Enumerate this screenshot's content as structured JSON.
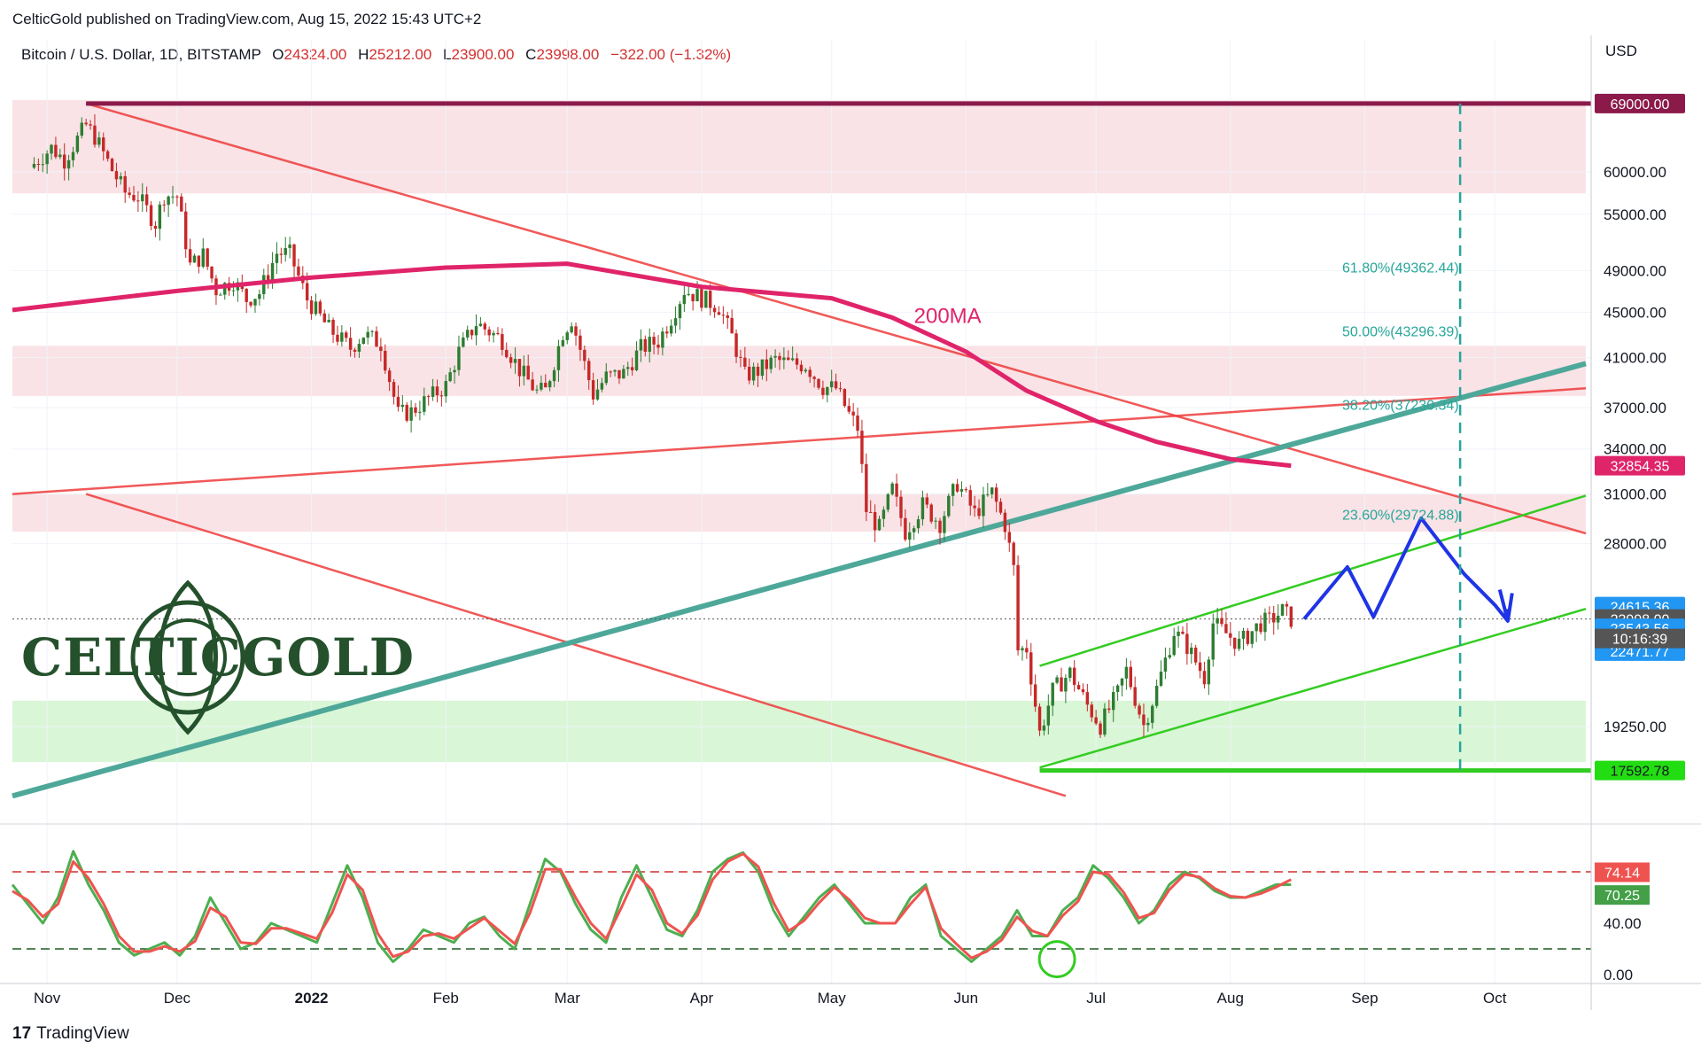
{
  "header": {
    "published": "CelticGold published on TradingView.com, Aug 15, 2022 15:43 UTC+2",
    "symbol": "Bitcoin / U.S. Dollar, 1D, BITSTAMP",
    "o_label": "O",
    "o_value": "24324.00",
    "h_label": "H",
    "h_value": "25212.00",
    "l_label": "L",
    "l_value": "23900.00",
    "c_label": "C",
    "c_value": "23998.00",
    "change": "−322.00 (−1.32%)"
  },
  "axis_unit": "USD",
  "logo": "CELTICGOLD",
  "footer": {
    "brand": "TradingView",
    "mark": "17"
  },
  "colors": {
    "ma200": "#e0246a",
    "trend_red": "#ef3b3b",
    "teal_trend": "#4ea89a",
    "green_channel": "#33cc22",
    "projection": "#1f34e6",
    "resistance_zone": "#f7d9dd",
    "support_zone": "#c9f2c4",
    "candle_up": "#2e7d32",
    "candle_down": "#c62828",
    "stoch_k": "#4caf50",
    "stoch_d": "#ef5350"
  },
  "chart_data": [
    {
      "type": "line",
      "title": "Bitcoin / U.S. Dollar, 1D, BITSTAMP",
      "y_scale": "log",
      "y_ticks": [
        {
          "v": 60000,
          "label": "60000.00"
        },
        {
          "v": 55000,
          "label": "55000.00"
        },
        {
          "v": 49000,
          "label": "49000.00"
        },
        {
          "v": 45000,
          "label": "45000.00"
        },
        {
          "v": 41000,
          "label": "41000.00"
        },
        {
          "v": 37000,
          "label": "37000.00"
        },
        {
          "v": 34000,
          "label": "34000.00"
        },
        {
          "v": 31000,
          "label": "31000.00"
        },
        {
          "v": 28000,
          "label": "28000.00"
        },
        {
          "v": 19250,
          "label": "19250.00"
        }
      ],
      "price_tags": [
        {
          "v": 69000,
          "label": "69000.00",
          "color": "#8b1a4a"
        },
        {
          "v": 32854.35,
          "label": "32854.35",
          "color": "#e0246a"
        },
        {
          "v": 24615.36,
          "label": "24615.36",
          "color": "#2196f3"
        },
        {
          "v": 23998,
          "label": "23998.00",
          "color": "#555555"
        },
        {
          "v": 23543.56,
          "label": "23543.56",
          "color": "#2196f3"
        },
        {
          "v": 22471.77,
          "label": "22471.77",
          "color": "#2196f3"
        },
        {
          "v": 17592.78,
          "label": "17592.78",
          "color": "#22dd11",
          "dark_text": true
        }
      ],
      "countdown": "10:16:39",
      "x_labels": [
        {
          "d": "2021-11-01",
          "label": "Nov"
        },
        {
          "d": "2021-12-01",
          "label": "Dec"
        },
        {
          "d": "2022-01-01",
          "label": "2022",
          "bold": true
        },
        {
          "d": "2022-02-01",
          "label": "Feb"
        },
        {
          "d": "2022-03-01",
          "label": "Mar"
        },
        {
          "d": "2022-04-01",
          "label": "Apr"
        },
        {
          "d": "2022-05-01",
          "label": "May"
        },
        {
          "d": "2022-06-01",
          "label": "Jun"
        },
        {
          "d": "2022-07-01",
          "label": "Jul"
        },
        {
          "d": "2022-08-01",
          "label": "Aug"
        },
        {
          "d": "2022-09-01",
          "label": "Sep"
        },
        {
          "d": "2022-10-01",
          "label": "Oct"
        }
      ],
      "fib_levels": [
        {
          "v": 49362.44,
          "label": "61.80%(49362.44)"
        },
        {
          "v": 43296.39,
          "label": "50.00%(43296.39)"
        },
        {
          "v": 37230.34,
          "label": "38.20%(37230.34)"
        },
        {
          "v": 29724.88,
          "label": "23.60%(29724.88)"
        }
      ],
      "annotations": [
        {
          "label": "200MA"
        }
      ],
      "price_path": [
        [
          "2021-10-28",
          60500
        ],
        [
          "2021-11-02",
          63000
        ],
        [
          "2021-11-05",
          61500
        ],
        [
          "2021-11-10",
          66000
        ],
        [
          "2021-11-12",
          64500
        ],
        [
          "2021-11-16",
          60200
        ],
        [
          "2021-11-19",
          57500
        ],
        [
          "2021-11-22",
          57000
        ],
        [
          "2021-11-26",
          54000
        ],
        [
          "2021-11-28",
          57200
        ],
        [
          "2021-12-01",
          57100
        ],
        [
          "2021-12-04",
          49500
        ],
        [
          "2021-12-07",
          50600
        ],
        [
          "2021-12-10",
          47100
        ],
        [
          "2021-12-14",
          48000
        ],
        [
          "2021-12-17",
          46200
        ],
        [
          "2021-12-20",
          46800
        ],
        [
          "2021-12-24",
          50800
        ],
        [
          "2021-12-27",
          50700
        ],
        [
          "2021-12-31",
          46200
        ],
        [
          "2022-01-05",
          43500
        ],
        [
          "2022-01-10",
          41800
        ],
        [
          "2022-01-13",
          43000
        ],
        [
          "2022-01-17",
          42200
        ],
        [
          "2022-01-21",
          36500
        ],
        [
          "2022-01-24",
          36700
        ],
        [
          "2022-01-28",
          37700
        ],
        [
          "2022-02-01",
          38700
        ],
        [
          "2022-02-04",
          41500
        ],
        [
          "2022-02-08",
          44000
        ],
        [
          "2022-02-10",
          43500
        ],
        [
          "2022-02-14",
          42500
        ],
        [
          "2022-02-18",
          40000
        ],
        [
          "2022-02-22",
          38200
        ],
        [
          "2022-02-24",
          38300
        ],
        [
          "2022-02-28",
          43200
        ],
        [
          "2022-03-02",
          44400
        ],
        [
          "2022-03-07",
          38000
        ],
        [
          "2022-03-10",
          39400
        ],
        [
          "2022-03-14",
          39700
        ],
        [
          "2022-03-18",
          41800
        ],
        [
          "2022-03-22",
          42400
        ],
        [
          "2022-03-25",
          44500
        ],
        [
          "2022-03-28",
          47100
        ],
        [
          "2022-04-01",
          46300
        ],
        [
          "2022-04-05",
          45500
        ],
        [
          "2022-04-08",
          42800
        ],
        [
          "2022-04-11",
          39500
        ],
        [
          "2022-04-14",
          39900
        ],
        [
          "2022-04-18",
          40800
        ],
        [
          "2022-04-21",
          40500
        ],
        [
          "2022-04-25",
          40400
        ],
        [
          "2022-04-29",
          38600
        ],
        [
          "2022-05-02",
          38500
        ],
        [
          "2022-05-05",
          36500
        ],
        [
          "2022-05-07",
          35500
        ],
        [
          "2022-05-09",
          30000
        ],
        [
          "2022-05-12",
          28900
        ],
        [
          "2022-05-15",
          31300
        ],
        [
          "2022-05-18",
          28700
        ],
        [
          "2022-05-22",
          30300
        ],
        [
          "2022-05-26",
          29200
        ],
        [
          "2022-05-30",
          31700
        ],
        [
          "2022-06-03",
          29800
        ],
        [
          "2022-06-07",
          31100
        ],
        [
          "2022-06-10",
          29100
        ],
        [
          "2022-06-12",
          26600
        ],
        [
          "2022-06-13",
          22500
        ],
        [
          "2022-06-15",
          22600
        ],
        [
          "2022-06-18",
          19000
        ],
        [
          "2022-06-21",
          20700
        ],
        [
          "2022-06-25",
          21500
        ],
        [
          "2022-06-29",
          20100
        ],
        [
          "2022-07-02",
          19300
        ],
        [
          "2022-07-06",
          20600
        ],
        [
          "2022-07-08",
          21600
        ],
        [
          "2022-07-12",
          19300
        ],
        [
          "2022-07-15",
          20800
        ],
        [
          "2022-07-19",
          23400
        ],
        [
          "2022-07-22",
          22700
        ],
        [
          "2022-07-26",
          21300
        ],
        [
          "2022-07-28",
          23800
        ],
        [
          "2022-07-31",
          23300
        ],
        [
          "2022-08-03",
          22800
        ],
        [
          "2022-08-05",
          23200
        ],
        [
          "2022-08-08",
          23800
        ],
        [
          "2022-08-10",
          23900
        ],
        [
          "2022-08-13",
          24400
        ],
        [
          "2022-08-15",
          23998
        ]
      ],
      "ma200_path": [
        [
          "2021-10-24",
          45200
        ],
        [
          "2021-11-10",
          46000
        ],
        [
          "2021-12-01",
          47000
        ],
        [
          "2022-01-01",
          48300
        ],
        [
          "2022-02-01",
          49300
        ],
        [
          "2022-03-01",
          49700
        ],
        [
          "2022-04-01",
          47400
        ],
        [
          "2022-05-01",
          46300
        ],
        [
          "2022-05-15",
          44500
        ],
        [
          "2022-06-01",
          41500
        ],
        [
          "2022-06-15",
          38300
        ],
        [
          "2022-07-01",
          36000
        ],
        [
          "2022-07-15",
          34500
        ],
        [
          "2022-08-01",
          33300
        ],
        [
          "2022-08-15",
          32854
        ]
      ],
      "trendlines_red": [
        [
          [
            "2021-11-10",
            69000
          ],
          [
            "2022-10-22",
            28600
          ]
        ],
        [
          [
            "2021-11-10",
            31000
          ],
          [
            "2022-06-24",
            16700
          ]
        ],
        [
          [
            "2021-10-24",
            31000
          ],
          [
            "2022-10-22",
            38500
          ]
        ]
      ],
      "trendline_teal": [
        [
          "2021-10-24",
          16700
        ],
        [
          "2022-10-22",
          40500
        ]
      ],
      "green_channel": [
        [
          [
            "2022-06-18",
            21800
          ],
          [
            "2022-10-22",
            30900
          ]
        ],
        [
          [
            "2022-06-18",
            17700
          ],
          [
            "2022-10-22",
            24500
          ]
        ]
      ],
      "support_line": [
        [
          "2022-06-18",
          17592.78
        ],
        [
          "2022-10-22",
          17592.78
        ]
      ],
      "projection_path": [
        [
          "2022-08-18",
          24000
        ],
        [
          "2022-08-28",
          26700
        ],
        [
          "2022-09-03",
          24100
        ],
        [
          "2022-09-14",
          29500
        ],
        [
          "2022-09-24",
          26300
        ],
        [
          "2022-10-01",
          24700
        ],
        [
          "2022-10-04",
          23900
        ],
        [
          "2022-10-05",
          25300
        ]
      ],
      "resistance_zones": [
        [
          57400,
          69500
        ],
        [
          37900,
          42000
        ],
        [
          28700,
          31000
        ]
      ],
      "support_zone": [
        17900,
        20300
      ],
      "fib_vertical": "2022-09-23"
    },
    {
      "type": "line",
      "title": "",
      "y_ticks": [
        {
          "v": 40,
          "label": "40.00"
        },
        {
          "v": 0,
          "label": "0.00"
        }
      ],
      "overbought": 80,
      "oversold": 20,
      "value_tags": [
        {
          "v": 74.14,
          "label": "74.14",
          "color": "#ef5350"
        },
        {
          "v": 70.25,
          "label": "70.25",
          "color": "#43a047"
        }
      ],
      "series": [
        {
          "values": [
            70,
            55,
            40,
            60,
            96,
            70,
            50,
            25,
            15,
            20,
            25,
            15,
            30,
            60,
            40,
            20,
            25,
            40,
            35,
            30,
            25,
            55,
            85,
            60,
            25,
            10,
            20,
            35,
            30,
            25,
            40,
            45,
            30,
            20,
            55,
            90,
            80,
            55,
            35,
            25,
            60,
            85,
            60,
            35,
            30,
            50,
            80,
            90,
            95,
            80,
            50,
            30,
            45,
            60,
            70,
            55,
            40,
            40,
            40,
            60,
            70,
            30,
            20,
            10,
            20,
            30,
            50,
            30,
            30,
            50,
            60,
            85,
            75,
            60,
            40,
            50,
            70,
            80,
            75,
            65,
            60,
            60,
            65,
            70,
            70
          ]
        },
        {
          "values": [
            65,
            58,
            45,
            55,
            88,
            75,
            55,
            30,
            18,
            18,
            22,
            18,
            26,
            52,
            45,
            25,
            24,
            36,
            36,
            32,
            28,
            48,
            78,
            66,
            32,
            14,
            18,
            30,
            32,
            28,
            36,
            44,
            34,
            24,
            48,
            82,
            82,
            60,
            40,
            28,
            52,
            78,
            66,
            40,
            32,
            46,
            74,
            88,
            94,
            84,
            56,
            34,
            42,
            56,
            68,
            58,
            44,
            40,
            40,
            55,
            68,
            36,
            24,
            13,
            18,
            27,
            45,
            34,
            30,
            46,
            57,
            80,
            78,
            64,
            44,
            48,
            66,
            78,
            76,
            67,
            61,
            60,
            63,
            68,
            74
          ]
        }
      ]
    }
  ]
}
